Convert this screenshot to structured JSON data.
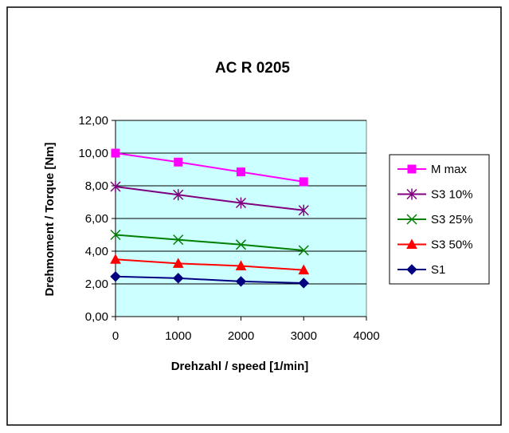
{
  "chart_data": {
    "type": "line",
    "title": "AC R 0205",
    "xlabel": "Drehzahl / speed [1/min]",
    "ylabel": "Drehmoment / Torque [Nm]",
    "xlim": [
      0,
      4000
    ],
    "ylim": [
      0,
      12
    ],
    "xticks": [
      "0",
      "1000",
      "2000",
      "3000",
      "4000"
    ],
    "yticks": [
      "0,00",
      "2,00",
      "4,00",
      "6,00",
      "8,00",
      "10,00",
      "12,00"
    ],
    "grid": true,
    "legend_position": "right",
    "plot_background": "#CCFFFF",
    "x": [
      0,
      1000,
      2000,
      3000
    ],
    "series": [
      {
        "name": "M max",
        "values": [
          10.0,
          9.45,
          8.85,
          8.25
        ],
        "color": "#FF00FF",
        "marker": "square"
      },
      {
        "name": "S3 10%",
        "values": [
          7.95,
          7.45,
          6.95,
          6.5
        ],
        "color": "#800080",
        "marker": "star"
      },
      {
        "name": "S3 25%",
        "values": [
          5.0,
          4.7,
          4.4,
          4.05
        ],
        "color": "#008000",
        "marker": "x"
      },
      {
        "name": "S3 50%",
        "values": [
          3.5,
          3.25,
          3.1,
          2.85
        ],
        "color": "#FF0000",
        "marker": "triangle"
      },
      {
        "name": "S1",
        "values": [
          2.45,
          2.35,
          2.15,
          2.05
        ],
        "color": "#000080",
        "marker": "diamond"
      }
    ]
  }
}
